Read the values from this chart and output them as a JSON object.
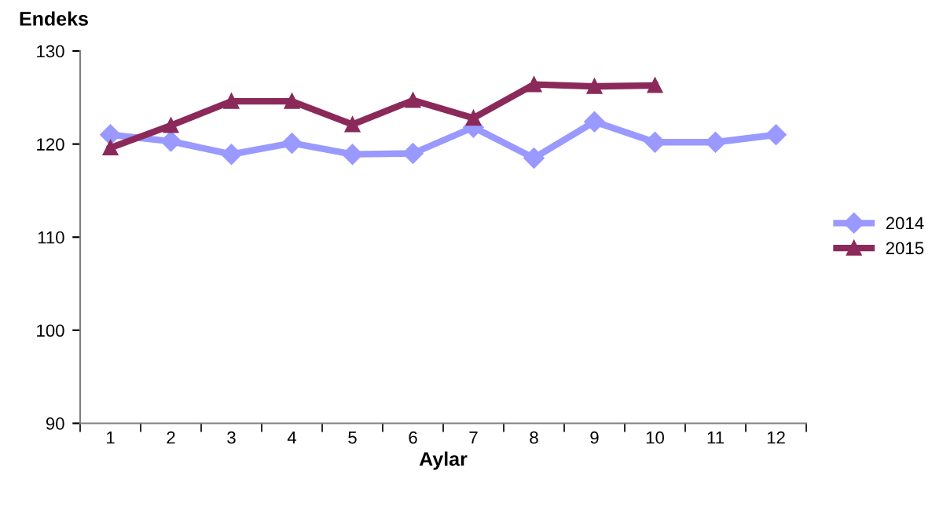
{
  "chart_data": {
    "type": "line",
    "ylabel": "Endeks",
    "xlabel": "Aylar",
    "categories": [
      "1",
      "2",
      "3",
      "4",
      "5",
      "6",
      "7",
      "8",
      "9",
      "10",
      "11",
      "12"
    ],
    "series": [
      {
        "name": "2014",
        "color": "#9999ff",
        "marker": "diamond",
        "values": [
          121.0,
          120.3,
          118.9,
          120.1,
          118.9,
          119.0,
          121.8,
          118.5,
          122.4,
          120.2,
          120.2,
          121.0
        ]
      },
      {
        "name": "2015",
        "color": "#8b2a5a",
        "marker": "triangle",
        "values": [
          119.6,
          122.0,
          124.6,
          124.6,
          122.1,
          124.7,
          122.8,
          126.4,
          126.2,
          126.3,
          null,
          null
        ]
      }
    ],
    "ylim": [
      90,
      130
    ],
    "yticks": [
      90,
      100,
      110,
      120,
      130
    ],
    "grid": false,
    "legend": "right",
    "line_style": "solid"
  }
}
